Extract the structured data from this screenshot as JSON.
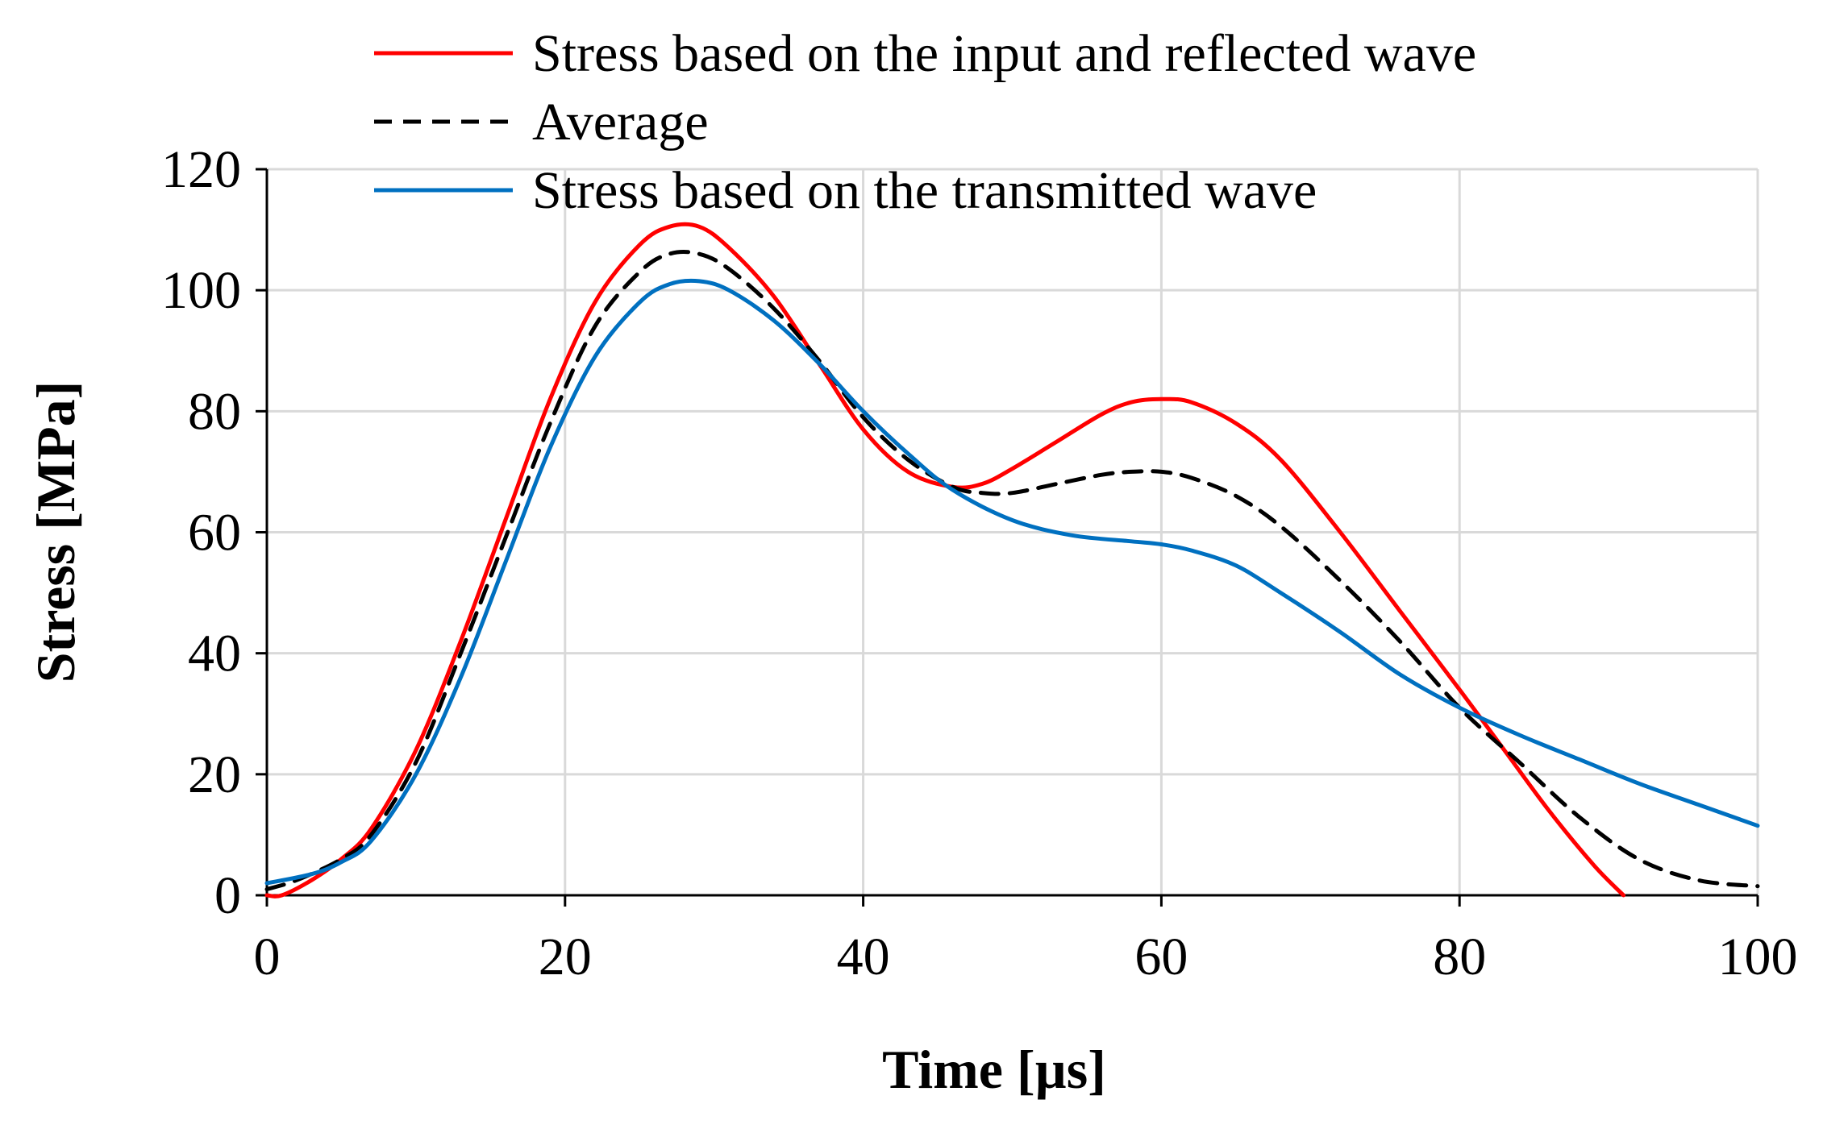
{
  "chart_data": {
    "type": "line",
    "xlabel": "Time [µs]",
    "ylabel": "Stress [MPa]",
    "xlim": [
      0,
      100
    ],
    "ylim": [
      0,
      120
    ],
    "xticks": [
      0,
      20,
      40,
      60,
      80,
      100
    ],
    "yticks": [
      0,
      20,
      40,
      60,
      80,
      100,
      120
    ],
    "grid": true,
    "legend_position": "top",
    "series": [
      {
        "name": "Stress based on the input and reflected wave",
        "color": "#ff0000",
        "dash": "solid",
        "x": [
          0,
          1,
          3,
          5,
          7,
          10,
          13,
          16,
          19,
          22,
          25,
          27,
          29,
          31,
          34,
          37,
          40,
          43,
          46,
          48,
          50,
          53,
          56,
          58,
          60,
          62,
          65,
          68,
          72,
          76,
          80,
          83,
          86,
          89,
          91
        ],
        "y": [
          0,
          0,
          2.5,
          6,
          11,
          24,
          42,
          62,
          82,
          98,
          107.5,
          110.5,
          110.5,
          107,
          99,
          88,
          77,
          70,
          67.5,
          68,
          70.5,
          75,
          79.5,
          81.5,
          82,
          81.5,
          78,
          72,
          60,
          47,
          34,
          24,
          14,
          5,
          0
        ]
      },
      {
        "name": "Average",
        "color": "#000000",
        "dash": "dashed",
        "x": [
          0,
          2,
          5,
          7,
          10,
          13,
          16,
          19,
          22,
          25,
          27,
          29,
          31,
          34,
          37,
          40,
          43,
          46,
          48,
          50,
          53,
          56,
          58,
          60,
          62,
          65,
          68,
          72,
          76,
          80,
          84,
          88,
          92,
          96,
          100
        ],
        "y": [
          1,
          2.5,
          6,
          10,
          22,
          40,
          59,
          78,
          94,
          103,
          106,
          106,
          103.5,
          97,
          88.5,
          79,
          72,
          67.5,
          66.5,
          66.5,
          68,
          69.5,
          70,
          70,
          69,
          66,
          61,
          52,
          42,
          31,
          22,
          13,
          6,
          2.5,
          1.5
        ]
      },
      {
        "name": "Stress based on the transmitted wave",
        "color": "#0070c0",
        "dash": "solid",
        "x": [
          0,
          3,
          5,
          7,
          10,
          13,
          16,
          19,
          22,
          25,
          27,
          29,
          31,
          34,
          37,
          40,
          43,
          46,
          50,
          54,
          58,
          60,
          62,
          65,
          68,
          72,
          76,
          80,
          84,
          88,
          92,
          96,
          100
        ],
        "y": [
          2,
          3.5,
          5.5,
          9,
          20,
          36,
          55,
          74,
          89,
          98,
          101,
          101.5,
          100,
          95,
          88,
          80,
          73,
          67,
          62,
          59.5,
          58.5,
          58,
          57,
          54.5,
          50,
          43.5,
          36.5,
          31,
          26.5,
          22.5,
          18.5,
          15,
          11.5
        ]
      }
    ]
  }
}
